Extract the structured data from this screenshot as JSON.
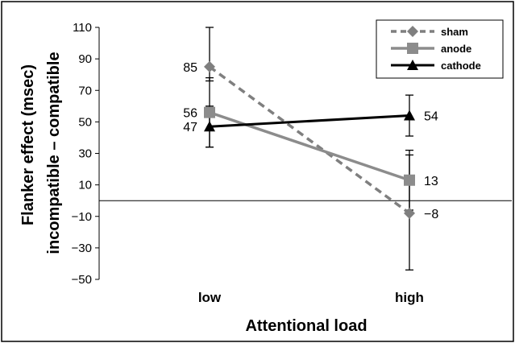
{
  "chart_data": {
    "type": "line",
    "categories": [
      "low",
      "high"
    ],
    "xlabel": "Attentional load",
    "ylabel_line1": "Flanker effect (msec)",
    "ylabel_line2": "incompatible – compatible",
    "ylim": [
      -50,
      110
    ],
    "yticks": [
      -50,
      -30,
      -10,
      10,
      30,
      50,
      70,
      90,
      110
    ],
    "ytick_labels": [
      "−50",
      "−30",
      "−10",
      "10",
      "30",
      "50",
      "70",
      "90",
      "110"
    ],
    "zero_line": 0,
    "legend_position": "top-right",
    "series": [
      {
        "name": "sham",
        "values": [
          85,
          -8
        ],
        "labels": [
          "85",
          "−8"
        ],
        "error_low": [
          76,
          -44
        ],
        "error_high": [
          110,
          29
        ],
        "color": "#7f7f7f",
        "dash": true,
        "marker": "diamond"
      },
      {
        "name": "anode",
        "values": [
          56,
          13
        ],
        "labels": [
          "56",
          "13"
        ],
        "error_low": [
          34,
          -6
        ],
        "error_high": [
          78,
          32
        ],
        "color": "#8c8c8c",
        "dash": false,
        "marker": "square"
      },
      {
        "name": "cathode",
        "values": [
          47,
          54
        ],
        "labels": [
          "47",
          "54"
        ],
        "error_low": [
          34,
          41
        ],
        "error_high": [
          60,
          67
        ],
        "color": "#000000",
        "dash": false,
        "marker": "triangle"
      }
    ]
  }
}
